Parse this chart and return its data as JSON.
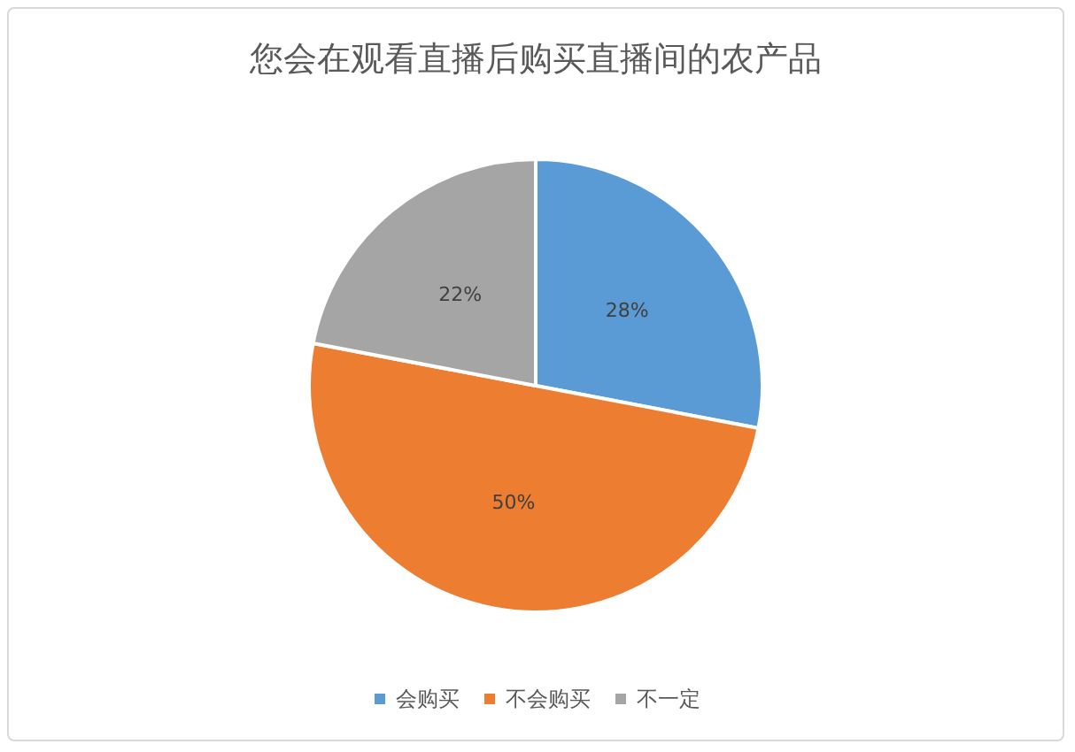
{
  "chart_data": {
    "type": "pie",
    "title": "您会在观看直播后购买直播间的农产品",
    "categories": [
      "会购买",
      "不会购买",
      "不一定"
    ],
    "values": [
      28,
      50,
      22
    ],
    "colors": [
      "#5b9bd5",
      "#ed7d31",
      "#a5a5a5"
    ],
    "value_labels": [
      "28%",
      "50%",
      "22%"
    ],
    "legend": "bottom"
  }
}
